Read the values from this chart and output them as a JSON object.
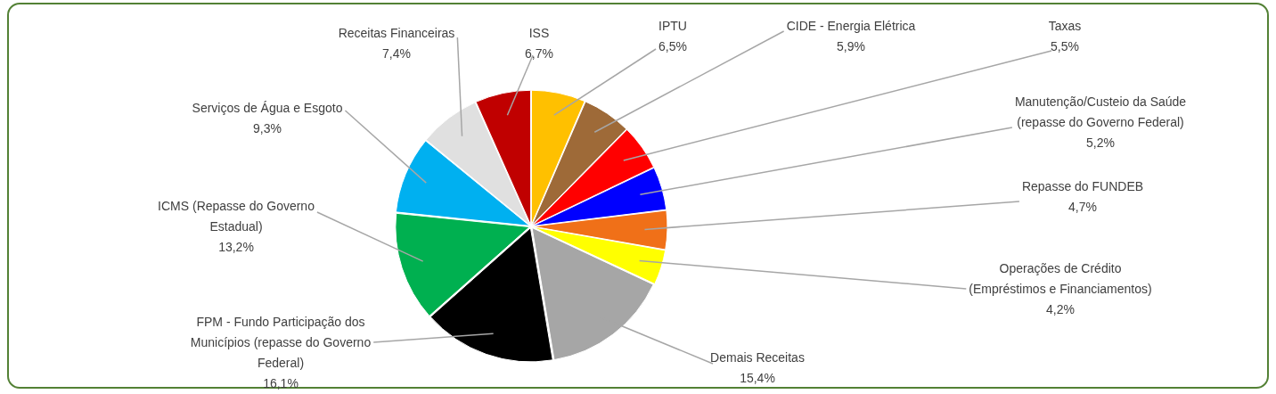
{
  "chart_data": {
    "type": "pie",
    "categories": [
      "IPTU",
      "CIDE - Energia Elétrica",
      "Taxas",
      "Manutenção/Custeio da Saúde (repasse do Governo Federal)",
      "Repasse do FUNDEB",
      "Operações de Crédito (Empréstimos e Financiamentos)",
      "Demais Receitas",
      "FPM - Fundo Participação dos Municípios (repasse do Governo Federal)",
      "ICMS (Repasse do Governo Estadual)",
      "Serviços de Água e Esgoto",
      "Receitas Financeiras",
      "ISS"
    ],
    "values": [
      6.5,
      5.9,
      5.5,
      5.2,
      4.7,
      4.2,
      15.4,
      16.1,
      13.2,
      9.3,
      7.4,
      6.7
    ],
    "colors": [
      "#ffc000",
      "#9e6a38",
      "#ff0000",
      "#0000ff",
      "#f07018",
      "#ffff00",
      "#a6a6a6",
      "#000000",
      "#00b050",
      "#00b0f0",
      "#e0e0e0",
      "#c00000"
    ],
    "value_labels": [
      "6,5%",
      "5,9%",
      "5,5%",
      "5,2%",
      "4,7%",
      "4,2%",
      "15,4%",
      "16,1%",
      "13,2%",
      "9,3%",
      "7,4%",
      "6,7%"
    ],
    "legend": false
  }
}
